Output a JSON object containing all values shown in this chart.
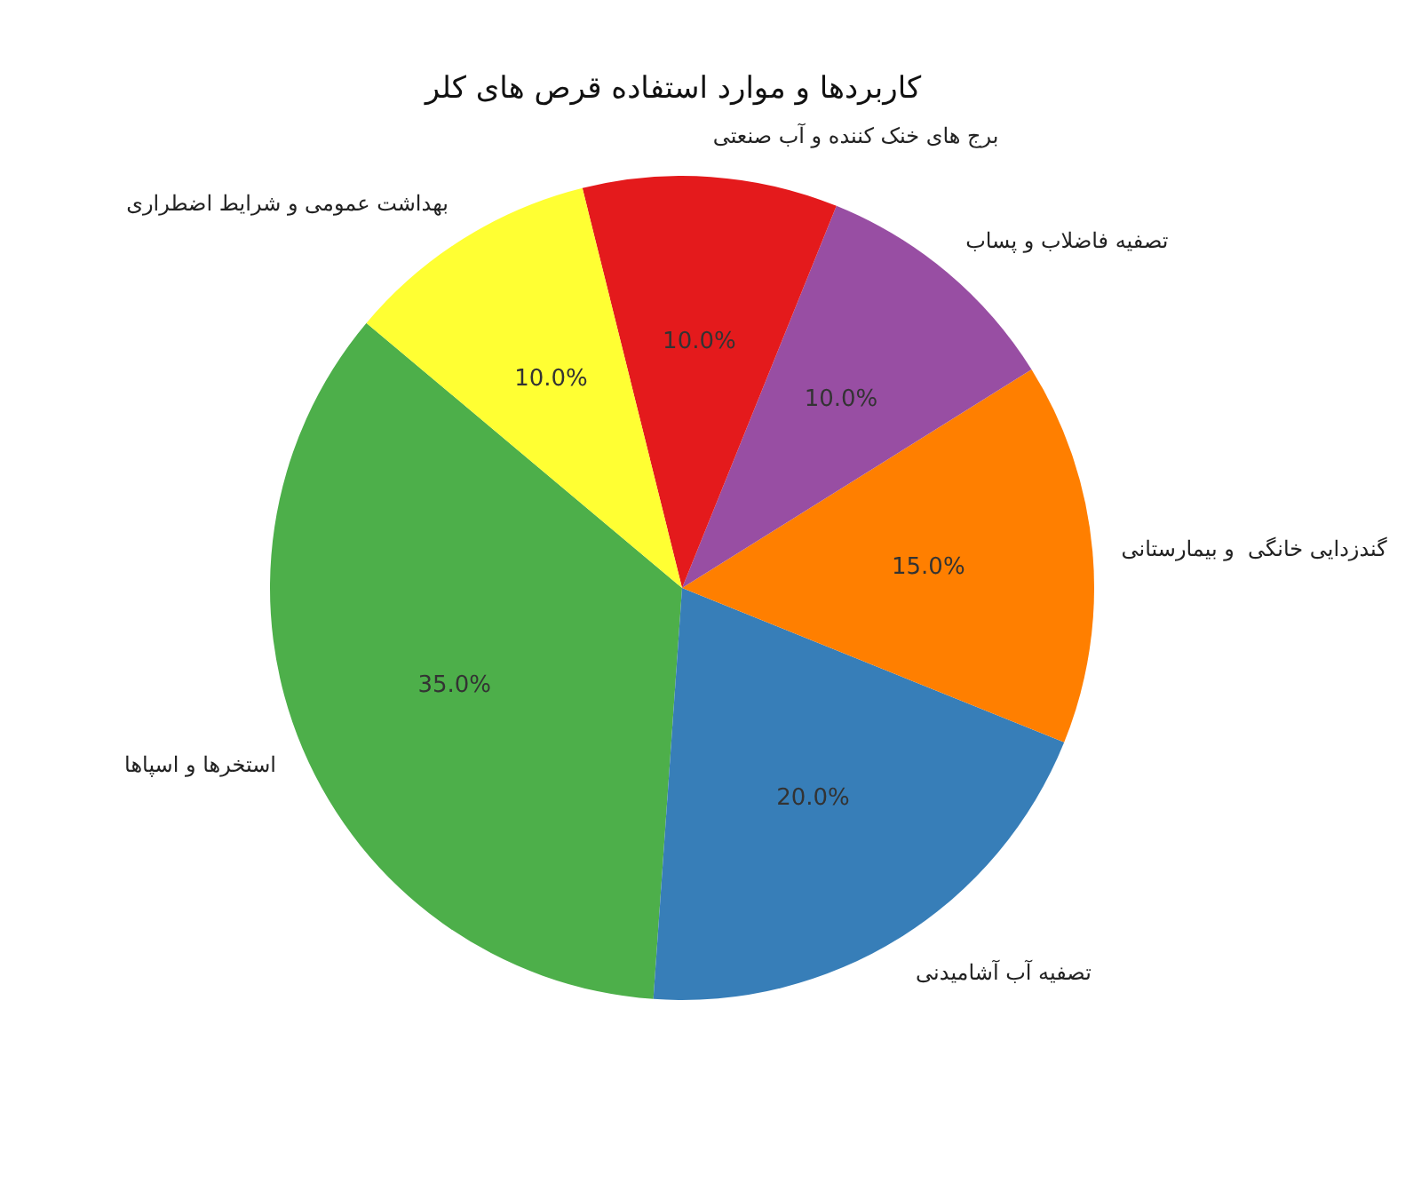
{
  "chart_data": {
    "type": "pie",
    "title": "کاربردها و موارد استفاده قرص های کلر",
    "categories": [
      "استخرها و اسپاها",
      "تصفیه آب آشامیدنی",
      "گندزدایی خانگی  و بیمارستانی",
      "تصفیه فاضلاب و پساب",
      "برج های خنک کننده و آب صنعتی",
      "بهداشت عمومی و شرایط اضطراری"
    ],
    "values": [
      35,
      20,
      15,
      10,
      10,
      10
    ],
    "colors": [
      "#4daf4a",
      "#377eb8",
      "#ff7f00",
      "#984ea3",
      "#e41a1c",
      "#ffff33"
    ],
    "value_labels": [
      "35.0%",
      "20.0%",
      "15.0%",
      "10.0%",
      "10.0%",
      "10.0%"
    ]
  }
}
